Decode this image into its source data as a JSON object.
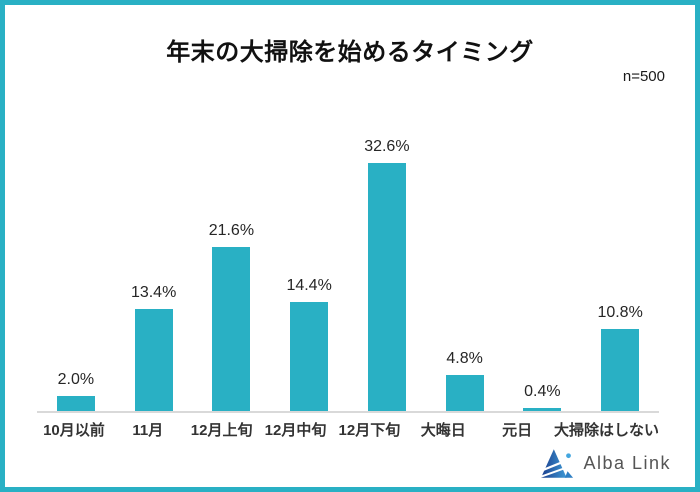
{
  "header": {
    "title": "年末の大掃除を始めるタイミング",
    "sample_size": "n=500"
  },
  "chart_data": {
    "type": "bar",
    "title": "年末の大掃除を始めるタイミング",
    "sample_size": "n=500",
    "categories": [
      "10月以前",
      "11月",
      "12月上旬",
      "12月中旬",
      "12月下旬",
      "大晦日",
      "元日",
      "大掃除はしない"
    ],
    "values": [
      2.0,
      13.4,
      21.6,
      14.4,
      32.6,
      4.8,
      0.4,
      10.8
    ],
    "value_labels": [
      "2.0%",
      "13.4%",
      "21.6%",
      "14.4%",
      "32.6%",
      "4.8%",
      "0.4%",
      "10.8%"
    ],
    "unit": "%",
    "bar_color": "#29B0C4",
    "frame_border_color": "#29B0C4",
    "baseline_color": "#d9d9d9",
    "ylim": [
      0,
      35
    ],
    "grid": false,
    "legend": "none",
    "y_axis_visible": false
  },
  "footer": {
    "brand": "Alba Link"
  }
}
